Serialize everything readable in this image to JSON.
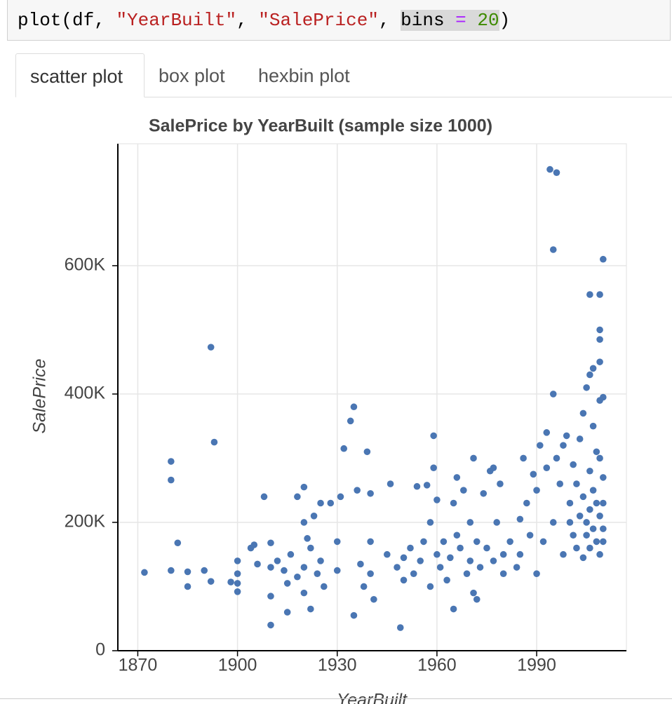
{
  "code": {
    "tokens": [
      "plot(df, ",
      "\"YearBuilt\"",
      ", ",
      "\"SalePrice\"",
      ", ",
      "bins",
      " = ",
      "20",
      ")"
    ]
  },
  "tabs": [
    "scatter plot",
    "box plot",
    "hexbin plot"
  ],
  "chart_data": {
    "type": "scatter",
    "title": "SalePrice by YearBuilt (sample size 1000)",
    "x_label": "YearBuilt",
    "y_label": "SalePrice",
    "color": "#4a76b3",
    "grid": true,
    "xlim": [
      1864,
      2017
    ],
    "ylim": [
      0,
      790000
    ],
    "xticks": [
      1870,
      1900,
      1930,
      1960,
      1990
    ],
    "yticks": [
      0,
      {
        "value": 200000,
        "label": "200K"
      },
      {
        "value": 400000,
        "label": "400K"
      },
      {
        "value": 600000,
        "label": "600K"
      }
    ],
    "x": [
      1872,
      1880,
      1880,
      1880,
      1882,
      1885,
      1885,
      1890,
      1892,
      1892,
      1893,
      1898,
      1900,
      1900,
      1900,
      1900,
      1904,
      1905,
      1906,
      1908,
      1910,
      1910,
      1910,
      1910,
      1912,
      1914,
      1915,
      1915,
      1916,
      1918,
      1918,
      1920,
      1920,
      1920,
      1920,
      1921,
      1922,
      1922,
      1923,
      1924,
      1925,
      1925,
      1926,
      1928,
      1930,
      1930,
      1931,
      1932,
      1934,
      1935,
      1935,
      1936,
      1937,
      1938,
      1939,
      1940,
      1940,
      1940,
      1941,
      1945,
      1946,
      1948,
      1949,
      1950,
      1950,
      1952,
      1953,
      1954,
      1955,
      1956,
      1957,
      1958,
      1958,
      1959,
      1959,
      1960,
      1960,
      1961,
      1962,
      1963,
      1964,
      1965,
      1965,
      1966,
      1966,
      1967,
      1968,
      1969,
      1970,
      1970,
      1971,
      1971,
      1972,
      1972,
      1973,
      1974,
      1975,
      1976,
      1977,
      1977,
      1978,
      1979,
      1980,
      1980,
      1982,
      1984,
      1985,
      1985,
      1986,
      1987,
      1988,
      1989,
      1990,
      1990,
      1991,
      1992,
      1993,
      1993,
      1994,
      1995,
      1995,
      1995,
      1996,
      1996,
      1997,
      1998,
      1998,
      1999,
      2000,
      2000,
      2001,
      2001,
      2002,
      2002,
      2003,
      2003,
      2004,
      2004,
      2004,
      2005,
      2005,
      2005,
      2006,
      2006,
      2006,
      2006,
      2006,
      2007,
      2007,
      2007,
      2007,
      2008,
      2008,
      2008,
      2009,
      2009,
      2009,
      2009,
      2009,
      2009,
      2009,
      2009,
      2010,
      2010,
      2010,
      2010,
      2010,
      2010
    ],
    "values": [
      122000,
      295000,
      266000,
      125000,
      168000,
      123000,
      100000,
      125000,
      473000,
      108000,
      325000,
      107000,
      140000,
      120000,
      92000,
      105000,
      160000,
      165000,
      135000,
      240000,
      168000,
      85000,
      40000,
      130000,
      140000,
      125000,
      60000,
      105000,
      150000,
      115000,
      240000,
      255000,
      200000,
      130000,
      90000,
      175000,
      160000,
      65000,
      210000,
      120000,
      230000,
      140000,
      100000,
      230000,
      170000,
      125000,
      240000,
      315000,
      358000,
      380000,
      55000,
      250000,
      135000,
      100000,
      310000,
      245000,
      170000,
      120000,
      80000,
      150000,
      260000,
      130000,
      36000,
      110000,
      145000,
      160000,
      120000,
      256000,
      140000,
      170000,
      258000,
      100000,
      200000,
      335000,
      285000,
      150000,
      235000,
      130000,
      170000,
      110000,
      145000,
      65000,
      230000,
      180000,
      270000,
      160000,
      250000,
      120000,
      200000,
      140000,
      300000,
      90000,
      170000,
      80000,
      130000,
      245000,
      160000,
      280000,
      140000,
      285000,
      200000,
      260000,
      150000,
      120000,
      170000,
      130000,
      150000,
      205000,
      300000,
      230000,
      180000,
      275000,
      120000,
      250000,
      320000,
      170000,
      340000,
      285000,
      750000,
      625000,
      400000,
      200000,
      745000,
      300000,
      260000,
      320000,
      150000,
      335000,
      200000,
      230000,
      290000,
      180000,
      160000,
      260000,
      210000,
      330000,
      240000,
      370000,
      145000,
      410000,
      200000,
      180000,
      555000,
      430000,
      280000,
      220000,
      160000,
      440000,
      350000,
      250000,
      190000,
      310000,
      230000,
      170000,
      555000,
      500000,
      485000,
      450000,
      390000,
      300000,
      210000,
      150000,
      610000,
      395000,
      270000,
      230000,
      190000,
      170000
    ]
  }
}
